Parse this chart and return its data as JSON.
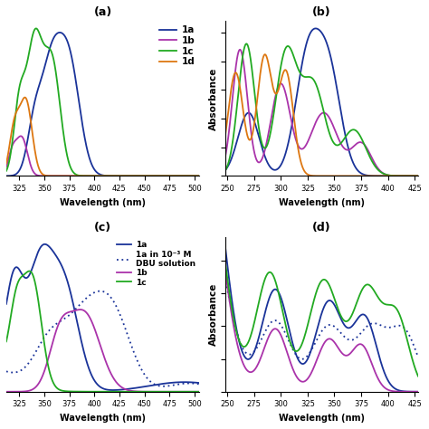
{
  "colors": {
    "1a": "#1a3399",
    "1b": "#aa33aa",
    "1c": "#22aa22",
    "1d": "#dd7711"
  },
  "panel_a": {
    "xlim": [
      312,
      505
    ],
    "xticks": [
      325,
      350,
      375,
      400,
      425,
      450,
      475,
      500
    ],
    "xlabel": "Wavelength (nm)",
    "legend": [
      "1a",
      "1b",
      "1c",
      "1d"
    ]
  },
  "panel_b": {
    "xlim": [
      248,
      428
    ],
    "xticks": [
      250,
      275,
      300,
      325,
      350,
      375,
      400,
      425
    ],
    "xlabel": "Wavelength (nm)",
    "ylabel": "Absorbance"
  },
  "panel_c": {
    "xlim": [
      312,
      505
    ],
    "xticks": [
      325,
      350,
      375,
      400,
      425,
      450,
      475,
      500
    ],
    "xlabel": "Wavelength (nm)"
  },
  "panel_d": {
    "xlim": [
      248,
      428
    ],
    "xticks": [
      250,
      275,
      300,
      325,
      350,
      375,
      400,
      425
    ],
    "xlabel": "Wavelength (nm)",
    "ylabel": "Absorbance"
  },
  "lw": 1.3
}
